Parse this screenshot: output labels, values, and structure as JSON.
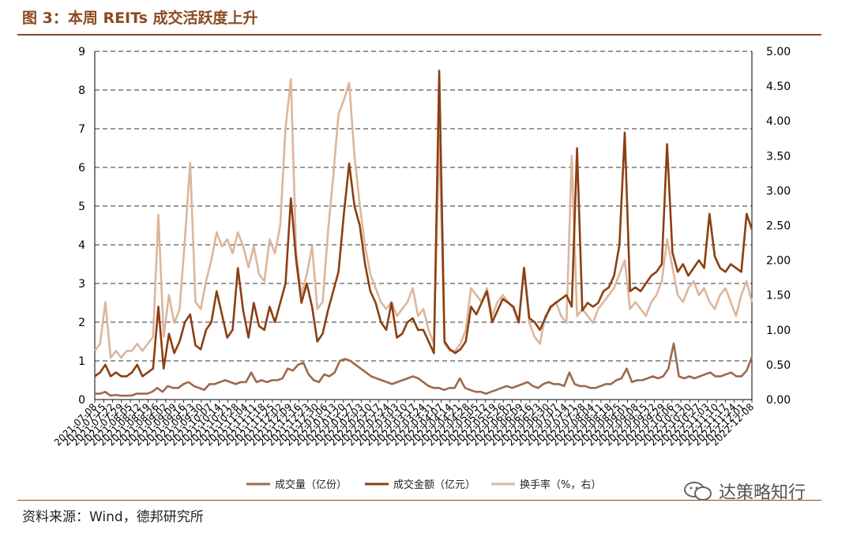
{
  "figure": {
    "title": "图 3：本周 REITs 成交活跃度上升",
    "source": "资料来源：Wind，德邦研究所",
    "watermark": "达策略知行",
    "watermark_icon": "wechat-icon"
  },
  "colors": {
    "volume": "#9c6a4c",
    "amount": "#8b3f12",
    "turnover": "#dcb69c",
    "axis": "#000000",
    "grid": "#333333",
    "title": "#8b4a1f"
  },
  "chart_data": {
    "type": "line",
    "title": "",
    "grid": "horizontal dashed",
    "legend_position": "bottom",
    "left_axis": {
      "ylim": [
        0,
        9
      ],
      "ticks": [
        "0",
        "1",
        "2",
        "3",
        "4",
        "5",
        "6",
        "7",
        "8",
        "9"
      ]
    },
    "right_axis": {
      "ylim": [
        0,
        5
      ],
      "ticks": [
        "0.00",
        "0.50",
        "1.00",
        "1.50",
        "2.00",
        "2.50",
        "3.00",
        "3.50",
        "4.00",
        "4.50",
        "5.00"
      ]
    },
    "x_start_label": "2021-07-08",
    "x_end_label": "2022-12-08",
    "x_tick_labels": [
      "2021-07-08",
      "2021-07-15",
      "2021-07-22",
      "2021-07-29",
      "2021-08-05",
      "2021-08-12",
      "2021-08-19",
      "2021-08-26",
      "2021-09-02",
      "2021-09-09",
      "2021-09-16",
      "2021-09-23",
      "2021-09-30",
      "2021-10-07",
      "2021-10-14",
      "2021-10-21",
      "2021-10-28",
      "2021-11-04",
      "2021-11-11",
      "2021-11-18",
      "2021-11-25",
      "2021-12-02",
      "2021-12-09",
      "2021-12-16",
      "2021-12-23",
      "2021-12-30",
      "2022-01-06",
      "2022-01-13",
      "2022-01-20",
      "2022-01-27",
      "2022-02-03",
      "2022-02-10",
      "2022-02-17",
      "2022-02-24",
      "2022-03-03",
      "2022-03-10",
      "2022-03-17",
      "2022-03-24",
      "2022-03-31",
      "2022-04-07",
      "2022-04-14",
      "2022-04-21",
      "2022-04-28",
      "2022-05-05",
      "2022-05-12",
      "2022-05-19",
      "2022-05-26",
      "2022-06-02",
      "2022-06-09",
      "2022-06-16",
      "2022-06-23",
      "2022-06-30",
      "2022-07-07",
      "2022-07-14",
      "2022-07-21",
      "2022-07-28",
      "2022-08-04",
      "2022-08-11",
      "2022-08-18",
      "2022-08-25",
      "2022-09-01",
      "2022-09-08",
      "2022-09-15",
      "2022-09-22",
      "2022-09-29",
      "2022-10-06",
      "2022-10-13",
      "2022-10-20",
      "2022-10-27",
      "2022-11-03",
      "2022-11-10",
      "2022-11-17",
      "2022-11-24",
      "2022-12-01",
      "2022-12-08"
    ],
    "series": [
      {
        "name": "成交量（亿份）",
        "axis": "left",
        "values": [
          0.15,
          0.15,
          0.2,
          0.1,
          0.12,
          0.1,
          0.1,
          0.1,
          0.15,
          0.15,
          0.15,
          0.2,
          0.3,
          0.2,
          0.35,
          0.3,
          0.3,
          0.4,
          0.45,
          0.35,
          0.3,
          0.25,
          0.4,
          0.4,
          0.45,
          0.5,
          0.45,
          0.4,
          0.45,
          0.45,
          0.7,
          0.45,
          0.5,
          0.45,
          0.5,
          0.5,
          0.55,
          0.8,
          0.75,
          0.9,
          0.95,
          0.65,
          0.5,
          0.45,
          0.65,
          0.6,
          0.7,
          1.0,
          1.05,
          1.0,
          0.9,
          0.8,
          0.7,
          0.6,
          0.55,
          0.5,
          0.45,
          0.4,
          0.45,
          0.5,
          0.55,
          0.6,
          0.55,
          0.45,
          0.35,
          0.3,
          0.3,
          0.25,
          0.3,
          0.3,
          0.55,
          0.3,
          0.25,
          0.2,
          0.2,
          0.15,
          0.2,
          0.25,
          0.3,
          0.35,
          0.3,
          0.35,
          0.4,
          0.45,
          0.35,
          0.3,
          0.4,
          0.45,
          0.4,
          0.4,
          0.35,
          0.7,
          0.4,
          0.35,
          0.35,
          0.3,
          0.3,
          0.35,
          0.4,
          0.4,
          0.5,
          0.55,
          0.8,
          0.45,
          0.5,
          0.5,
          0.55,
          0.6,
          0.55,
          0.6,
          0.8,
          1.45,
          0.6,
          0.55,
          0.6,
          0.55,
          0.6,
          0.65,
          0.7,
          0.6,
          0.6,
          0.65,
          0.7,
          0.6,
          0.6,
          0.75,
          1.1
        ]
      },
      {
        "name": "成交金额（亿元）",
        "axis": "left",
        "values": [
          0.6,
          0.7,
          0.9,
          0.6,
          0.7,
          0.6,
          0.6,
          0.7,
          0.9,
          0.6,
          0.7,
          0.8,
          2.4,
          0.8,
          1.7,
          1.2,
          1.5,
          2.0,
          2.2,
          1.4,
          1.3,
          1.8,
          2.0,
          2.8,
          2.2,
          1.6,
          1.8,
          3.4,
          2.3,
          1.6,
          2.5,
          1.9,
          1.8,
          2.4,
          2.0,
          2.5,
          3.0,
          5.2,
          3.6,
          2.5,
          3.0,
          2.4,
          1.5,
          1.7,
          2.3,
          2.8,
          3.3,
          4.8,
          6.1,
          5.0,
          4.5,
          3.5,
          2.8,
          2.5,
          2.0,
          1.8,
          2.5,
          1.6,
          1.7,
          2.0,
          2.1,
          1.8,
          1.8,
          1.5,
          1.2,
          8.5,
          1.5,
          1.3,
          1.2,
          1.3,
          1.5,
          2.4,
          2.2,
          2.5,
          2.8,
          2.0,
          2.3,
          2.6,
          2.5,
          2.4,
          2.0,
          3.4,
          2.1,
          2.0,
          1.8,
          2.1,
          2.4,
          2.5,
          2.6,
          2.7,
          2.4,
          6.5,
          2.3,
          2.5,
          2.4,
          2.5,
          2.8,
          2.9,
          3.2,
          4.0,
          6.9,
          2.8,
          2.9,
          2.8,
          3.0,
          3.2,
          3.3,
          3.5,
          6.6,
          3.8,
          3.3,
          3.5,
          3.2,
          3.4,
          3.6,
          3.4,
          4.8,
          3.7,
          3.4,
          3.3,
          3.5,
          3.4,
          3.3,
          4.8,
          4.4
        ]
      },
      {
        "name": "换手率（%，右）",
        "axis": "right",
        "values": [
          0.7,
          0.8,
          1.4,
          0.6,
          0.7,
          0.6,
          0.7,
          0.7,
          0.8,
          0.7,
          0.8,
          0.9,
          2.65,
          0.9,
          1.5,
          1.1,
          1.3,
          2.3,
          3.4,
          1.4,
          1.3,
          1.7,
          2.0,
          2.4,
          2.2,
          2.3,
          2.1,
          2.4,
          2.2,
          1.9,
          2.2,
          1.8,
          1.7,
          2.3,
          2.1,
          2.5,
          3.9,
          4.6,
          2.1,
          1.5,
          1.8,
          2.2,
          1.3,
          1.4,
          2.4,
          3.2,
          4.1,
          4.3,
          4.55,
          3.5,
          2.8,
          2.2,
          1.8,
          1.6,
          1.4,
          1.3,
          1.4,
          1.2,
          1.3,
          1.4,
          1.6,
          1.2,
          1.3,
          1.0,
          0.8,
          3.8,
          0.8,
          0.7,
          0.7,
          0.8,
          1.0,
          1.6,
          1.5,
          1.4,
          1.6,
          1.2,
          1.4,
          1.5,
          1.4,
          1.3,
          1.1,
          1.9,
          1.1,
          0.9,
          0.8,
          1.2,
          1.3,
          1.4,
          1.2,
          1.1,
          3.5,
          1.2,
          1.3,
          1.2,
          1.1,
          1.3,
          1.4,
          1.5,
          1.6,
          1.8,
          2.0,
          1.3,
          1.4,
          1.3,
          1.2,
          1.4,
          1.5,
          1.7,
          2.3,
          1.9,
          1.5,
          1.4,
          1.6,
          1.7,
          1.5,
          1.6,
          1.4,
          1.3,
          1.5,
          1.6,
          1.4,
          1.2,
          1.5,
          1.7,
          1.4
        ]
      }
    ]
  }
}
